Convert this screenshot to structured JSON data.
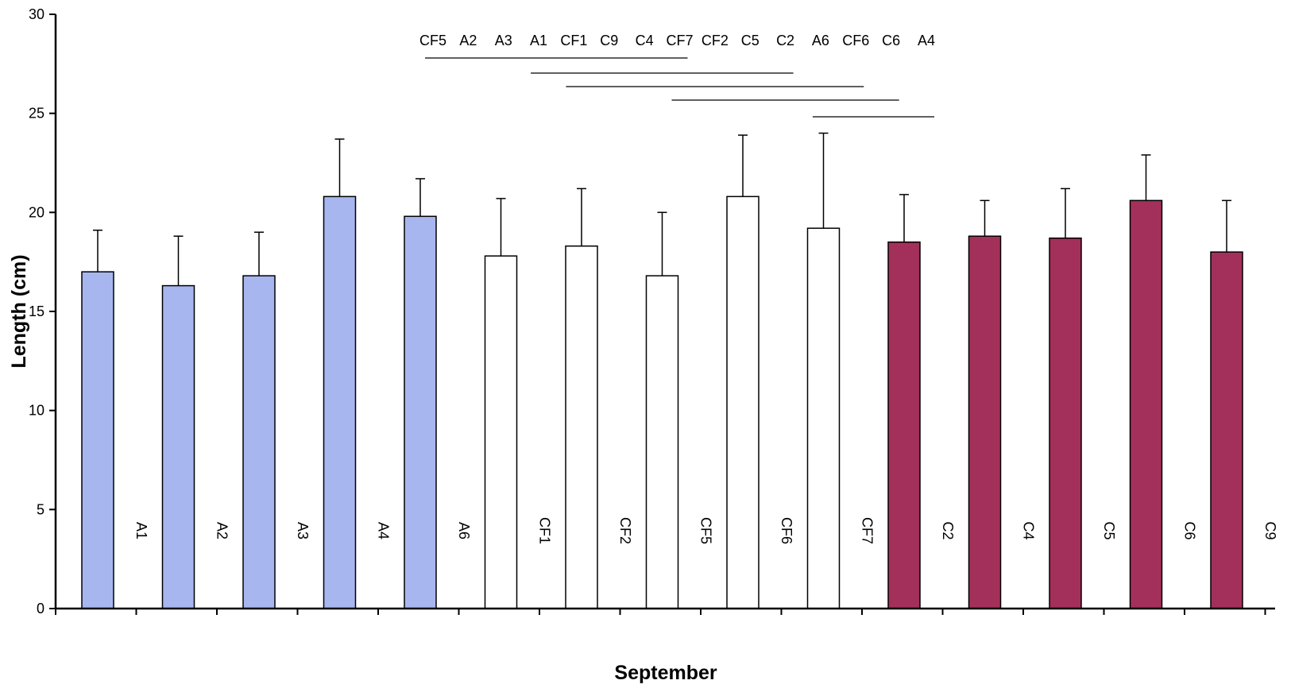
{
  "chart_data": {
    "type": "bar",
    "title": "",
    "xlabel": "September",
    "ylabel": "Length (cm)",
    "ylim": [
      0,
      30
    ],
    "yticks": [
      0,
      5,
      10,
      15,
      20,
      25,
      30
    ],
    "grid": false,
    "legend": "none",
    "categories": [
      "A1",
      "A2",
      "A3",
      "A4",
      "A6",
      "CF1",
      "CF2",
      "CF5",
      "CF6",
      "CF7",
      "C2",
      "C4",
      "C5",
      "C6",
      "C9"
    ],
    "values": [
      17.0,
      16.3,
      16.8,
      20.8,
      19.8,
      17.8,
      18.3,
      16.8,
      20.8,
      19.2,
      18.5,
      18.8,
      18.7,
      20.6,
      18.0
    ],
    "errors": [
      2.1,
      2.5,
      2.2,
      2.9,
      1.9,
      2.9,
      2.9,
      3.2,
      3.1,
      4.8,
      2.4,
      1.8,
      2.5,
      2.3,
      2.6
    ],
    "bar_colors": [
      "#a8b6f0",
      "#a8b6f0",
      "#a8b6f0",
      "#a8b6f0",
      "#a8b6f0",
      "#ffffff",
      "#ffffff",
      "#ffffff",
      "#ffffff",
      "#ffffff",
      "#a3305a",
      "#a3305a",
      "#a3305a",
      "#a3305a",
      "#a3305a"
    ],
    "ranking": {
      "labels": [
        "CF5",
        "A2",
        "A3",
        "A1",
        "CF1",
        "C9",
        "C4",
        "CF7",
        "CF2",
        "C5",
        "C2",
        "A6",
        "CF6",
        "C6",
        "A4"
      ],
      "groupings": [
        {
          "from": 0,
          "to": 7
        },
        {
          "from": 3,
          "to": 10
        },
        {
          "from": 4,
          "to": 12
        },
        {
          "from": 7,
          "to": 13
        },
        {
          "from": 11,
          "to": 14
        }
      ]
    }
  }
}
